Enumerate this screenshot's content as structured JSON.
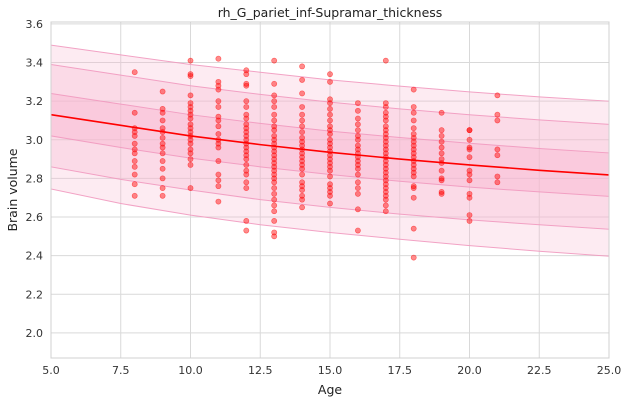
{
  "chart_data": {
    "type": "scatter",
    "title": "rh_G_pariet_inf-Supramar_thickness",
    "xlabel": "Age",
    "ylabel": "Brain volume",
    "xlim": [
      5.0,
      25.0
    ],
    "ylim": [
      1.87,
      3.61
    ],
    "xticks": [
      5.0,
      7.5,
      10.0,
      12.5,
      15.0,
      17.5,
      20.0,
      22.5,
      25.0
    ],
    "xtick_labels": [
      "5.0",
      "7.5",
      "10.0",
      "12.5",
      "15.0",
      "17.5",
      "20.0",
      "22.5",
      "25.0"
    ],
    "yticks": [
      2.0,
      2.2,
      2.4,
      2.6,
      2.8,
      3.0,
      3.2,
      3.4,
      3.6
    ],
    "ytick_labels": [
      "2.0",
      "2.2",
      "2.4",
      "2.6",
      "2.8",
      "3.0",
      "3.2",
      "3.4",
      "3.6"
    ],
    "grid": true,
    "fit_line": {
      "name": "median",
      "x": [
        5,
        7.5,
        10,
        12.5,
        15,
        17.5,
        20,
        22.5,
        25
      ],
      "y": [
        3.13,
        3.075,
        3.02,
        2.975,
        2.935,
        2.9,
        2.87,
        2.842,
        2.818
      ],
      "color": "#ff0000"
    },
    "bands": [
      {
        "name": "outer band",
        "x": [
          5,
          7.5,
          10,
          12.5,
          15,
          17.5,
          20,
          22.5,
          25
        ],
        "lower": [
          2.745,
          2.67,
          2.61,
          2.56,
          2.52,
          2.485,
          2.452,
          2.423,
          2.397
        ],
        "upper": [
          3.49,
          3.44,
          3.39,
          3.35,
          3.31,
          3.278,
          3.248,
          3.222,
          3.2
        ],
        "color": "#f8b6d0",
        "opacity": 0.28
      },
      {
        "name": "middle band",
        "x": [
          5,
          7.5,
          10,
          12.5,
          15,
          17.5,
          20,
          22.5,
          25
        ],
        "lower": [
          2.86,
          2.795,
          2.74,
          2.69,
          2.65,
          2.615,
          2.585,
          2.56,
          2.537
        ],
        "upper": [
          3.39,
          3.335,
          3.28,
          3.235,
          3.195,
          3.16,
          3.13,
          3.103,
          3.08
        ],
        "color": "#f8b6d0",
        "opacity": 0.32
      },
      {
        "name": "inner band",
        "x": [
          5,
          7.5,
          10,
          12.5,
          15,
          17.5,
          20,
          22.5,
          25
        ],
        "lower": [
          3.02,
          2.96,
          2.905,
          2.86,
          2.82,
          2.785,
          2.755,
          2.73,
          2.707
        ],
        "upper": [
          3.24,
          3.185,
          3.13,
          3.085,
          3.045,
          3.012,
          2.982,
          2.955,
          2.932
        ],
        "color": "#f8b6d0",
        "opacity": 0.42
      }
    ],
    "points": {
      "color": "#ff0000",
      "opacity": 0.45,
      "data": [
        [
          8,
          3.35
        ],
        [
          8,
          3.14
        ],
        [
          8,
          3.06
        ],
        [
          8,
          3.04
        ],
        [
          8,
          3.02
        ],
        [
          8,
          2.98
        ],
        [
          8,
          2.95
        ],
        [
          8,
          2.93
        ],
        [
          8,
          2.89
        ],
        [
          8,
          2.86
        ],
        [
          8,
          2.82
        ],
        [
          8,
          2.77
        ],
        [
          8,
          2.71
        ],
        [
          9,
          3.25
        ],
        [
          9,
          3.16
        ],
        [
          9,
          3.14
        ],
        [
          9,
          3.1
        ],
        [
          9,
          3.06
        ],
        [
          9,
          3.04
        ],
        [
          9,
          3.01
        ],
        [
          9,
          2.98
        ],
        [
          9,
          2.96
        ],
        [
          9,
          2.93
        ],
        [
          9,
          2.89
        ],
        [
          9,
          2.85
        ],
        [
          9,
          2.8
        ],
        [
          9,
          2.75
        ],
        [
          9,
          2.71
        ],
        [
          10,
          3.41
        ],
        [
          10,
          3.34
        ],
        [
          10,
          3.33
        ],
        [
          10,
          3.23
        ],
        [
          10,
          3.19
        ],
        [
          10,
          3.17
        ],
        [
          10,
          3.15
        ],
        [
          10,
          3.13
        ],
        [
          10,
          3.11
        ],
        [
          10,
          3.08
        ],
        [
          10,
          3.06
        ],
        [
          10,
          3.04
        ],
        [
          10,
          3.02
        ],
        [
          10,
          3.0
        ],
        [
          10,
          2.98
        ],
        [
          10,
          2.95
        ],
        [
          10,
          2.93
        ],
        [
          10,
          2.9
        ],
        [
          10,
          2.87
        ],
        [
          10,
          2.75
        ],
        [
          11,
          3.42
        ],
        [
          11,
          3.3
        ],
        [
          11,
          3.28
        ],
        [
          11,
          3.26
        ],
        [
          11,
          3.2
        ],
        [
          11,
          3.17
        ],
        [
          11,
          3.12
        ],
        [
          11,
          3.1
        ],
        [
          11,
          3.07
        ],
        [
          11,
          3.03
        ],
        [
          11,
          3.0
        ],
        [
          11,
          2.98
        ],
        [
          11,
          2.96
        ],
        [
          11,
          2.89
        ],
        [
          11,
          2.82
        ],
        [
          11,
          2.79
        ],
        [
          11,
          2.76
        ],
        [
          11,
          2.68
        ],
        [
          12,
          3.36
        ],
        [
          12,
          3.34
        ],
        [
          12,
          3.29
        ],
        [
          12,
          3.28
        ],
        [
          12,
          3.2
        ],
        [
          12,
          3.17
        ],
        [
          12,
          3.13
        ],
        [
          12,
          3.11
        ],
        [
          12,
          3.08
        ],
        [
          12,
          3.06
        ],
        [
          12,
          3.04
        ],
        [
          12,
          3.02
        ],
        [
          12,
          3.0
        ],
        [
          12,
          2.98
        ],
        [
          12,
          2.96
        ],
        [
          12,
          2.94
        ],
        [
          12,
          2.92
        ],
        [
          12,
          2.9
        ],
        [
          12,
          2.87
        ],
        [
          12,
          2.84
        ],
        [
          12,
          2.82
        ],
        [
          12,
          2.78
        ],
        [
          12,
          2.75
        ],
        [
          12,
          2.58
        ],
        [
          12,
          2.53
        ],
        [
          13,
          3.41
        ],
        [
          13,
          3.29
        ],
        [
          13,
          3.23
        ],
        [
          13,
          3.2
        ],
        [
          13,
          3.17
        ],
        [
          13,
          3.13
        ],
        [
          13,
          3.1
        ],
        [
          13,
          3.07
        ],
        [
          13,
          3.05
        ],
        [
          13,
          3.02
        ],
        [
          13,
          3.0
        ],
        [
          13,
          2.98
        ],
        [
          13,
          2.96
        ],
        [
          13,
          2.94
        ],
        [
          13,
          2.92
        ],
        [
          13,
          2.9
        ],
        [
          13,
          2.88
        ],
        [
          13,
          2.86
        ],
        [
          13,
          2.84
        ],
        [
          13,
          2.82
        ],
        [
          13,
          2.8
        ],
        [
          13,
          2.78
        ],
        [
          13,
          2.75
        ],
        [
          13,
          2.72
        ],
        [
          13,
          2.69
        ],
        [
          13,
          2.66
        ],
        [
          13,
          2.63
        ],
        [
          13,
          2.58
        ],
        [
          13,
          2.52
        ],
        [
          13,
          2.5
        ],
        [
          14,
          3.38
        ],
        [
          14,
          3.31
        ],
        [
          14,
          3.24
        ],
        [
          14,
          3.17
        ],
        [
          14,
          3.13
        ],
        [
          14,
          3.1
        ],
        [
          14,
          3.07
        ],
        [
          14,
          3.04
        ],
        [
          14,
          3.01
        ],
        [
          14,
          2.99
        ],
        [
          14,
          2.97
        ],
        [
          14,
          2.95
        ],
        [
          14,
          2.93
        ],
        [
          14,
          2.91
        ],
        [
          14,
          2.89
        ],
        [
          14,
          2.87
        ],
        [
          14,
          2.85
        ],
        [
          14,
          2.82
        ],
        [
          14,
          2.78
        ],
        [
          14,
          2.76
        ],
        [
          14,
          2.74
        ],
        [
          14,
          2.71
        ],
        [
          14,
          2.69
        ],
        [
          14,
          2.65
        ],
        [
          15,
          3.34
        ],
        [
          15,
          3.3
        ],
        [
          15,
          3.21
        ],
        [
          15,
          3.19
        ],
        [
          15,
          3.16
        ],
        [
          15,
          3.13
        ],
        [
          15,
          3.1
        ],
        [
          15,
          3.07
        ],
        [
          15,
          3.05
        ],
        [
          15,
          3.03
        ],
        [
          15,
          3.0
        ],
        [
          15,
          2.98
        ],
        [
          15,
          2.96
        ],
        [
          15,
          2.94
        ],
        [
          15,
          2.92
        ],
        [
          15,
          2.9
        ],
        [
          15,
          2.88
        ],
        [
          15,
          2.86
        ],
        [
          15,
          2.84
        ],
        [
          15,
          2.81
        ],
        [
          15,
          2.77
        ],
        [
          15,
          2.75
        ],
        [
          15,
          2.73
        ],
        [
          15,
          2.71
        ],
        [
          15,
          2.67
        ],
        [
          16,
          3.19
        ],
        [
          16,
          3.15
        ],
        [
          16,
          3.11
        ],
        [
          16,
          3.08
        ],
        [
          16,
          3.05
        ],
        [
          16,
          3.02
        ],
        [
          16,
          3.0
        ],
        [
          16,
          2.97
        ],
        [
          16,
          2.95
        ],
        [
          16,
          2.93
        ],
        [
          16,
          2.91
        ],
        [
          16,
          2.89
        ],
        [
          16,
          2.87
        ],
        [
          16,
          2.85
        ],
        [
          16,
          2.82
        ],
        [
          16,
          2.78
        ],
        [
          16,
          2.75
        ],
        [
          16,
          2.72
        ],
        [
          16,
          2.64
        ],
        [
          16,
          2.53
        ],
        [
          17,
          3.41
        ],
        [
          17,
          3.19
        ],
        [
          17,
          3.17
        ],
        [
          17,
          3.14
        ],
        [
          17,
          3.12
        ],
        [
          17,
          3.1
        ],
        [
          17,
          3.07
        ],
        [
          17,
          3.05
        ],
        [
          17,
          3.03
        ],
        [
          17,
          3.01
        ],
        [
          17,
          2.99
        ],
        [
          17,
          2.97
        ],
        [
          17,
          2.95
        ],
        [
          17,
          2.93
        ],
        [
          17,
          2.91
        ],
        [
          17,
          2.89
        ],
        [
          17,
          2.87
        ],
        [
          17,
          2.85
        ],
        [
          17,
          2.83
        ],
        [
          17,
          2.81
        ],
        [
          17,
          2.79
        ],
        [
          17,
          2.77
        ],
        [
          17,
          2.75
        ],
        [
          17,
          2.73
        ],
        [
          17,
          2.71
        ],
        [
          17,
          2.69
        ],
        [
          17,
          2.66
        ],
        [
          17,
          2.63
        ],
        [
          18,
          3.26
        ],
        [
          18,
          3.17
        ],
        [
          18,
          3.14
        ],
        [
          18,
          3.1
        ],
        [
          18,
          3.06
        ],
        [
          18,
          3.03
        ],
        [
          18,
          3.01
        ],
        [
          18,
          2.99
        ],
        [
          18,
          2.97
        ],
        [
          18,
          2.95
        ],
        [
          18,
          2.93
        ],
        [
          18,
          2.91
        ],
        [
          18,
          2.89
        ],
        [
          18,
          2.87
        ],
        [
          18,
          2.85
        ],
        [
          18,
          2.83
        ],
        [
          18,
          2.81
        ],
        [
          18,
          2.76
        ],
        [
          18,
          2.75
        ],
        [
          18,
          2.7
        ],
        [
          18,
          2.54
        ],
        [
          18,
          2.39
        ],
        [
          19,
          3.14
        ],
        [
          19,
          3.05
        ],
        [
          19,
          3.02
        ],
        [
          19,
          2.99
        ],
        [
          19,
          2.96
        ],
        [
          19,
          2.93
        ],
        [
          19,
          2.9
        ],
        [
          19,
          2.88
        ],
        [
          19,
          2.84
        ],
        [
          19,
          2.8
        ],
        [
          19,
          2.79
        ],
        [
          19,
          2.73
        ],
        [
          19,
          2.72
        ],
        [
          20,
          3.05
        ],
        [
          20,
          3.05
        ],
        [
          20,
          3.0
        ],
        [
          20,
          2.96
        ],
        [
          20,
          2.95
        ],
        [
          20,
          2.91
        ],
        [
          20,
          2.84
        ],
        [
          20,
          2.82
        ],
        [
          20,
          2.79
        ],
        [
          20,
          2.72
        ],
        [
          20,
          2.7
        ],
        [
          20,
          2.61
        ],
        [
          20,
          2.58
        ],
        [
          21,
          3.23
        ],
        [
          21,
          3.13
        ],
        [
          21,
          3.1
        ],
        [
          21,
          2.95
        ],
        [
          21,
          2.92
        ],
        [
          21,
          2.81
        ],
        [
          21,
          2.78
        ]
      ]
    }
  }
}
